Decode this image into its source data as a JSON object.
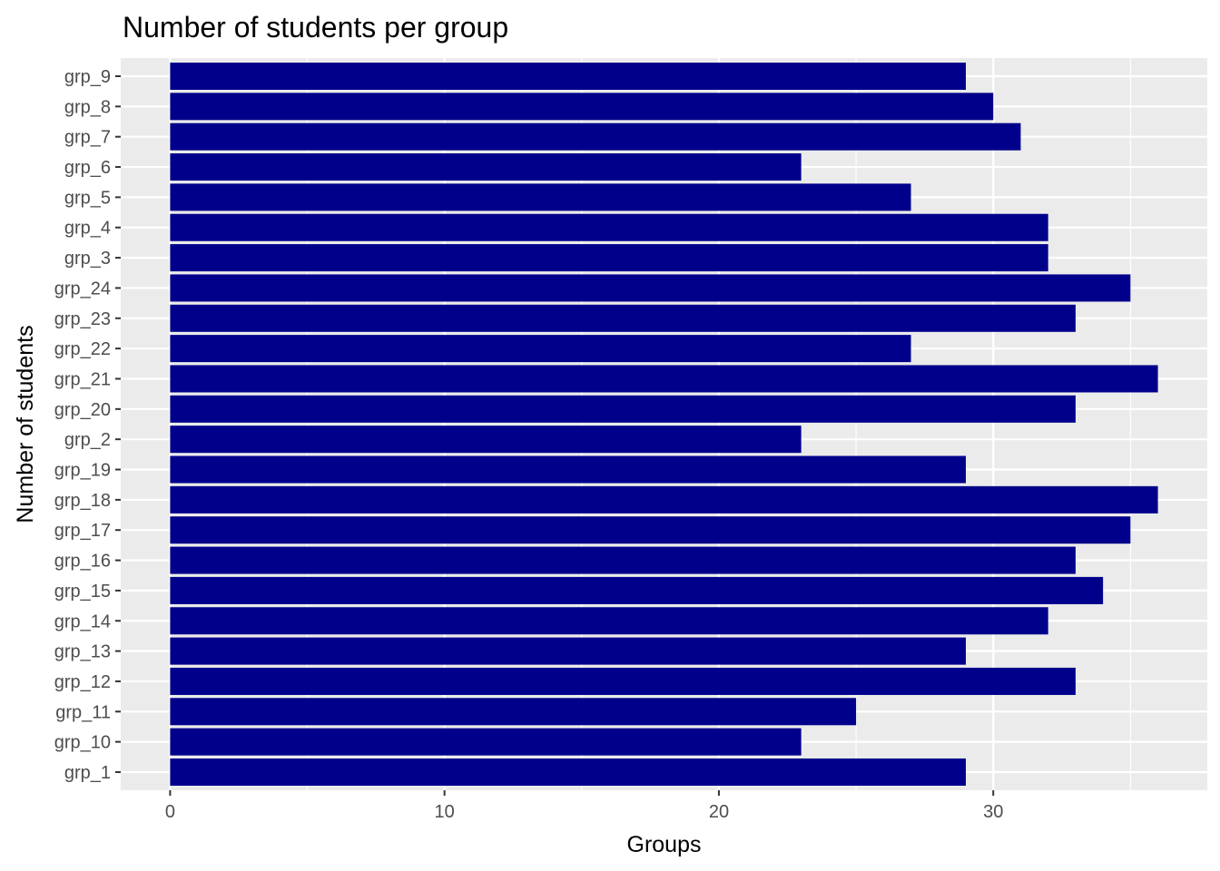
{
  "chart_data": {
    "type": "bar",
    "orientation": "horizontal",
    "title": "Number of students per group",
    "xlabel": "Groups",
    "ylabel": "Number of students",
    "categories": [
      "grp_1",
      "grp_10",
      "grp_11",
      "grp_12",
      "grp_13",
      "grp_14",
      "grp_15",
      "grp_16",
      "grp_17",
      "grp_18",
      "grp_19",
      "grp_2",
      "grp_20",
      "grp_21",
      "grp_22",
      "grp_23",
      "grp_24",
      "grp_3",
      "grp_4",
      "grp_5",
      "grp_6",
      "grp_7",
      "grp_8",
      "grp_9"
    ],
    "values": [
      29,
      23,
      25,
      33,
      29,
      32,
      34,
      33,
      35,
      36,
      29,
      23,
      33,
      36,
      27,
      33,
      35,
      32,
      32,
      27,
      23,
      31,
      30,
      29
    ],
    "xlim": [
      -1.8,
      37.8
    ],
    "x_ticks": [
      0,
      10,
      20,
      30
    ],
    "grid": true,
    "colors": {
      "bar": "#00008b",
      "panel": "#ebebeb",
      "grid": "#ffffff",
      "tick_text": "#4d4d4d",
      "tick_mark": "#333333"
    }
  }
}
